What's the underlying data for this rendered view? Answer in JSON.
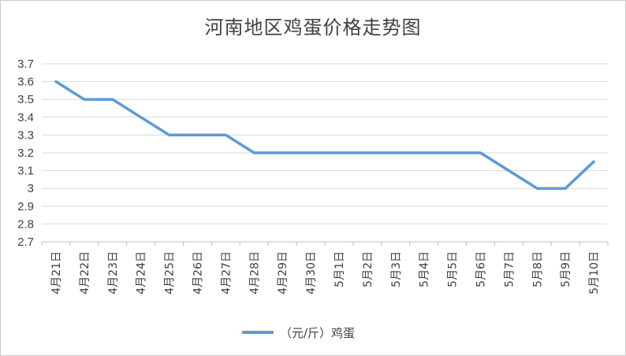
{
  "chart_data": {
    "type": "line",
    "title": "河南地区鸡蛋价格走势图",
    "categories": [
      "4月21日",
      "4月22日",
      "4月23日",
      "4月24日",
      "4月25日",
      "4月26日",
      "4月27日",
      "4月28日",
      "4月29日",
      "4月30日",
      "5月1日",
      "5月2日",
      "5月3日",
      "5月4日",
      "5月5日",
      "5月6日",
      "5月7日",
      "5月8日",
      "5月9日",
      "5月10日"
    ],
    "series": [
      {
        "name": "（元/斤）鸡蛋",
        "values": [
          3.6,
          3.5,
          3.5,
          3.4,
          3.3,
          3.3,
          3.3,
          3.2,
          3.2,
          3.2,
          3.2,
          3.2,
          3.2,
          3.2,
          3.2,
          3.2,
          3.1,
          3.0,
          3.0,
          3.15
        ],
        "color": "#5b9bd5"
      }
    ],
    "ylim": [
      2.7,
      3.7
    ],
    "yticks": [
      "2.7",
      "2.8",
      "2.9",
      "3",
      "3.1",
      "3.2",
      "3.3",
      "3.4",
      "3.5",
      "3.6",
      "3.7"
    ],
    "grid": true,
    "legend": "bottom-center"
  }
}
